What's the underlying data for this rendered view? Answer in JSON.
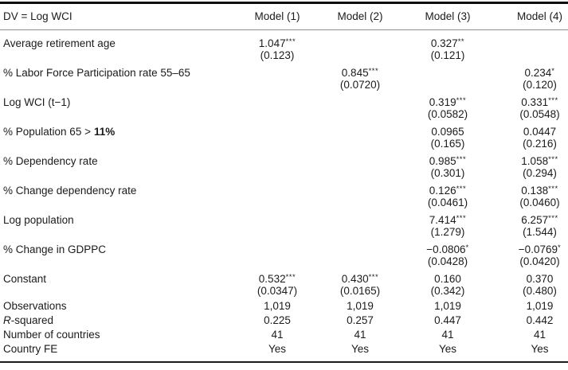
{
  "table": {
    "dv_label": "DV = Log WCI",
    "columns": [
      "Model (1)",
      "Model (2)",
      "Model (3)",
      "Model (4)"
    ],
    "rows": [
      {
        "label": "Average retirement age",
        "cells": [
          {
            "v": "1.047",
            "s": "***"
          },
          null,
          {
            "v": "0.327",
            "s": "**"
          },
          null
        ],
        "se": [
          "(0.123)",
          "",
          "(0.121)",
          ""
        ]
      },
      {
        "label": "% Labor Force Participation rate 55–65",
        "cells": [
          null,
          {
            "v": "0.845",
            "s": "***"
          },
          null,
          {
            "v": "0.234",
            "s": "*"
          }
        ],
        "se": [
          "",
          "(0.0720)",
          "",
          "(0.120)"
        ]
      },
      {
        "label": "Log WCI (t−1)",
        "cells": [
          null,
          null,
          {
            "v": "0.319",
            "s": "***"
          },
          {
            "v": "0.331",
            "s": "***"
          }
        ],
        "se": [
          "",
          "",
          "(0.0582)",
          "(0.0548)"
        ]
      },
      {
        "label": "% Population 65 >",
        "label_bold": "11%",
        "cells": [
          null,
          null,
          {
            "v": "0.0965",
            "s": ""
          },
          {
            "v": "0.0447",
            "s": ""
          }
        ],
        "se": [
          "",
          "",
          "(0.165)",
          "(0.216)"
        ]
      },
      {
        "label": "% Dependency rate",
        "cells": [
          null,
          null,
          {
            "v": "0.985",
            "s": "***"
          },
          {
            "v": "1.058",
            "s": "***"
          }
        ],
        "se": [
          "",
          "",
          "(0.301)",
          "(0.294)"
        ]
      },
      {
        "label": "% Change dependency rate",
        "cells": [
          null,
          null,
          {
            "v": "0.126",
            "s": "***"
          },
          {
            "v": "0.138",
            "s": "***"
          }
        ],
        "se": [
          "",
          "",
          "(0.0461)",
          "(0.0460)"
        ]
      },
      {
        "label": "Log population",
        "cells": [
          null,
          null,
          {
            "v": "7.414",
            "s": "***"
          },
          {
            "v": "6.257",
            "s": "***"
          }
        ],
        "se": [
          "",
          "",
          "(1.279)",
          "(1.544)"
        ]
      },
      {
        "label": "% Change in GDPPC",
        "cells": [
          null,
          null,
          {
            "v": "−0.0806",
            "s": "*"
          },
          {
            "v": "−0.0769",
            "s": "*"
          }
        ],
        "se": [
          "",
          "",
          "(0.0428)",
          "(0.0420)"
        ]
      },
      {
        "label": "Constant",
        "cells": [
          {
            "v": "0.532",
            "s": "***"
          },
          {
            "v": "0.430",
            "s": "***"
          },
          {
            "v": "0.160",
            "s": ""
          },
          {
            "v": "0.370",
            "s": ""
          }
        ],
        "se": [
          "(0.0347)",
          "(0.0165)",
          "(0.342)",
          "(0.480)"
        ]
      }
    ],
    "stats": [
      {
        "label": "Observations",
        "values": [
          "1,019",
          "1,019",
          "1,019",
          "1,019"
        ]
      },
      {
        "label_italic": "R",
        "label": "-squared",
        "values": [
          "0.225",
          "0.257",
          "0.447",
          "0.442"
        ]
      },
      {
        "label": "Number of countries",
        "values": [
          "41",
          "41",
          "41",
          "41"
        ]
      },
      {
        "label": "Country FE",
        "values": [
          "Yes",
          "Yes",
          "Yes",
          "Yes"
        ]
      }
    ]
  }
}
